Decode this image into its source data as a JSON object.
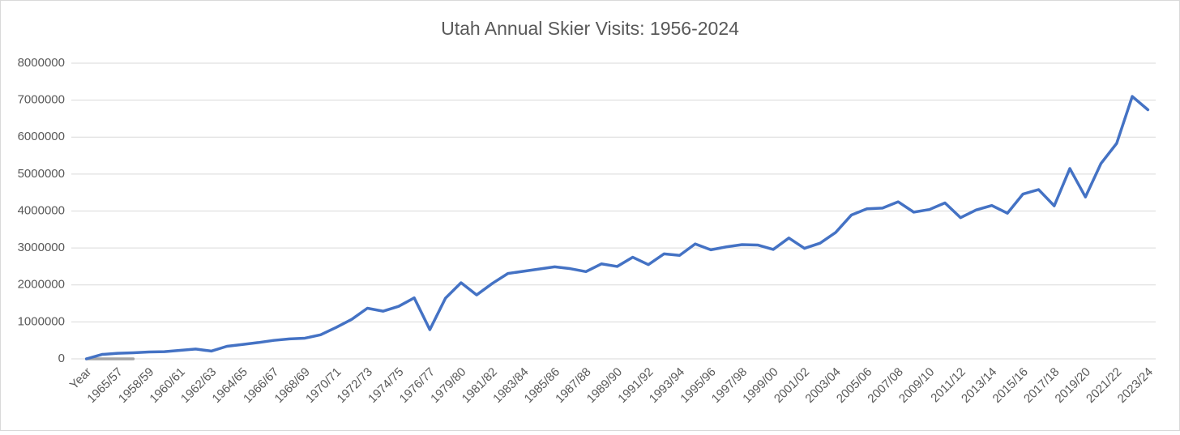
{
  "chart_data": {
    "type": "line",
    "title": "Utah Annual Skier Visits: 1956-2024",
    "categories": [
      "Year",
      null,
      "1965/57",
      null,
      "1958/59",
      null,
      "1960/61",
      null,
      "1962/63",
      null,
      "1964/65",
      null,
      "1966/67",
      null,
      "1968/69",
      null,
      "1970/71",
      null,
      "1972/73",
      null,
      "1974/75",
      null,
      "1976/77",
      null,
      "1979/80",
      null,
      "1981/82",
      null,
      "1983/84",
      null,
      "1985/86",
      null,
      "1987/88",
      null,
      "1989/90",
      null,
      "1991/92",
      null,
      "1993/94",
      null,
      "1995/96",
      null,
      "1997/98",
      null,
      "1999/00",
      null,
      "2001/02",
      null,
      "2003/04",
      null,
      "2005/06",
      null,
      "2007/08",
      null,
      "2009/10",
      null,
      "2011/12",
      null,
      "2013/14",
      null,
      "2015/16",
      null,
      "2017/18",
      null,
      "2019/20",
      null,
      "2021/22",
      null,
      "2023/24"
    ],
    "series": [
      {
        "color": "#a5a5a5",
        "values": [
          0,
          0,
          0,
          0,
          null,
          null,
          null,
          null,
          null,
          null,
          null,
          null,
          null,
          null,
          null,
          null,
          null,
          null,
          null,
          null,
          null,
          null,
          null,
          null,
          null,
          null,
          null,
          null,
          null,
          null,
          null,
          null,
          null,
          null,
          null,
          null,
          null,
          null,
          null,
          null,
          null,
          null,
          null,
          null,
          null,
          null,
          null,
          null,
          null,
          null,
          null,
          null,
          null,
          null,
          null,
          null,
          null,
          null,
          null,
          null,
          null,
          null,
          null,
          null,
          null,
          null,
          null,
          null,
          null
        ]
      },
      {
        "color": "#4472c4",
        "values": [
          0,
          120000,
          150000,
          165000,
          185000,
          195000,
          230000,
          265000,
          210000,
          340000,
          390000,
          440000,
          500000,
          540000,
          560000,
          650000,
          850000,
          1070000,
          1370000,
          1290000,
          1420000,
          1650000,
          790000,
          1640000,
          2060000,
          1730000,
          2040000,
          2310000,
          2370000,
          2430000,
          2490000,
          2440000,
          2360000,
          2570000,
          2500000,
          2750000,
          2550000,
          2840000,
          2800000,
          3110000,
          2950000,
          3030000,
          3090000,
          3080000,
          2960000,
          3270000,
          2990000,
          3130000,
          3420000,
          3890000,
          4060000,
          4080000,
          4250000,
          3970000,
          4040000,
          4220000,
          3820000,
          4030000,
          4150000,
          3940000,
          4460000,
          4580000,
          4140000,
          5150000,
          4380000,
          5290000,
          5830000,
          7100000,
          6740000
        ]
      }
    ],
    "ylim": [
      0,
      8000000
    ],
    "yticks": [
      0,
      1000000,
      2000000,
      3000000,
      4000000,
      5000000,
      6000000,
      7000000,
      8000000
    ],
    "grid": true
  }
}
